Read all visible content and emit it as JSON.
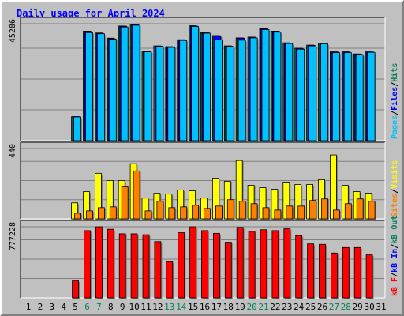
{
  "chart_data": {
    "type": "bar",
    "title": "Daily usage for April 2024",
    "categories": [
      "1",
      "2",
      "3",
      "4",
      "5",
      "6",
      "7",
      "8",
      "9",
      "10",
      "11",
      "12",
      "13",
      "14",
      "15",
      "16",
      "17",
      "18",
      "19",
      "20",
      "21",
      "22",
      "23",
      "24",
      "25",
      "26",
      "27",
      "28",
      "29",
      "30",
      "31"
    ],
    "weekend_days": [
      6,
      7,
      13,
      14,
      20,
      21,
      27,
      28
    ],
    "colors": {
      "hits": "#00805c",
      "files": "#0000ff",
      "pages": "#00c0ff",
      "visits": "#ffff00",
      "sites": "#ff8000",
      "kbin": "#0000ff",
      "kbout": "#00805c",
      "kbf": "#ff0000",
      "weekend": "#00805c",
      "weekday": "#000000"
    },
    "panels": [
      {
        "name": "hits",
        "ymax_label": "45286",
        "ylim": [
          0,
          45286
        ],
        "legend": [
          {
            "text": "Pages",
            "color": "#00c0ff"
          },
          {
            "text": "/",
            "color": "#000000"
          },
          {
            "text": "Files",
            "color": "#0000ff"
          },
          {
            "text": "/",
            "color": "#000000"
          },
          {
            "text": "Hits",
            "color": "#00805c"
          }
        ],
        "series": [
          {
            "name": "Hits",
            "color": "#00805c",
            "values": [
              null,
              null,
              null,
              null,
              9300,
              42400,
              41700,
              39700,
              44400,
              45100,
              34700,
              36700,
              36400,
              39100,
              44500,
              41900,
              40700,
              36700,
              39800,
              40100,
              43400,
              42400,
              37900,
              35800,
              37000,
              37800,
              34400,
              34400,
              33600,
              34400,
              null
            ]
          },
          {
            "name": "Files",
            "color": "#0000ff",
            "values": [
              null,
              null,
              null,
              null,
              9300,
              42300,
              41600,
              39500,
              44300,
              45000,
              34600,
              36600,
              36300,
              39000,
              44400,
              41800,
              40600,
              36600,
              39700,
              40000,
              43300,
              42300,
              37800,
              35700,
              36900,
              37700,
              34300,
              34300,
              33500,
              34300,
              null
            ]
          },
          {
            "name": "Pages",
            "color": "#00c0ff",
            "values": [
              null,
              null,
              null,
              null,
              9200,
              41800,
              41400,
              39300,
              44000,
              44700,
              34400,
              36400,
              36100,
              38800,
              44200,
              41600,
              39100,
              36400,
              38900,
              39800,
              43000,
              42000,
              37600,
              35400,
              36700,
              37500,
              34100,
              34100,
              33300,
              34200,
              null
            ]
          }
        ]
      },
      {
        "name": "visits",
        "ymax_label": "440",
        "ylim": [
          0,
          440
        ],
        "legend": [
          {
            "text": "Sites",
            "color": "#ff8000"
          },
          {
            "text": "/",
            "color": "#000000"
          },
          {
            "text": "Visits",
            "color": "#ffff00"
          }
        ],
        "series": [
          {
            "name": "Visits",
            "color": "#ffff00",
            "values": [
              null,
              null,
              null,
              null,
              100,
              170,
              285,
              240,
              240,
              345,
              130,
              160,
              155,
              180,
              175,
              130,
              255,
              235,
              365,
              210,
              195,
              185,
              225,
              215,
              215,
              245,
              400,
              210,
              170,
              160,
              null
            ]
          },
          {
            "name": "Sites",
            "color": "#ff8000",
            "values": [
              null,
              null,
              null,
              null,
              35,
              50,
              70,
              75,
              200,
              300,
              50,
              110,
              70,
              75,
              85,
              65,
              80,
              120,
              110,
              95,
              70,
              55,
              80,
              80,
              115,
              125,
              55,
              95,
              125,
              110,
              null
            ]
          }
        ]
      },
      {
        "name": "kbytes",
        "ymax_label": "777228",
        "ylim": [
          0,
          777228
        ],
        "legend": [
          {
            "text": "kB F",
            "color": "#ff0000"
          },
          {
            "text": "/",
            "color": "#000000"
          },
          {
            "text": "kB In",
            "color": "#0000ff"
          },
          {
            "text": "/",
            "color": "#000000"
          },
          {
            "text": "kB Out",
            "color": "#00805c"
          }
        ],
        "series": [
          {
            "name": "kB F",
            "color": "#ff0000",
            "values": [
              null,
              null,
              null,
              null,
              185000,
              735000,
              777000,
              750000,
              700000,
              700000,
              690000,
              615000,
              395000,
              712000,
              777000,
              735000,
              705000,
              608000,
              770000,
              727000,
              745000,
              735000,
              755000,
              680000,
              590000,
              585000,
              490000,
              550000,
              550000,
              470000,
              null
            ]
          }
        ]
      }
    ]
  }
}
